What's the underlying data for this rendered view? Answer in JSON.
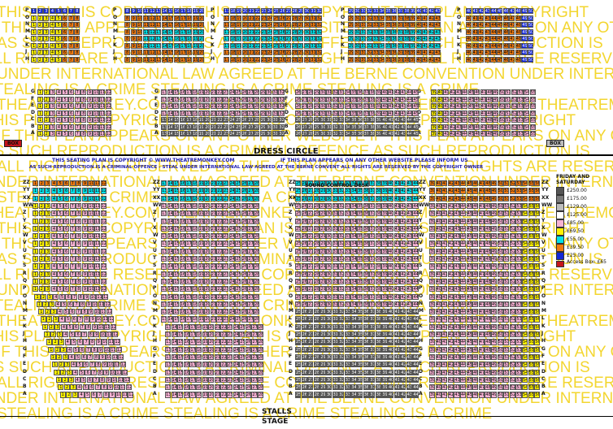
{
  "watermark_lines": [
    "THIS PLAN IS COPYRIGHT  THIS PLAN IS COPYRIGHT  THIS PLAN IS COPYRIGHT",
    "IF THIS PLAN APPEARS ON ANY OTHER WEBSITE  IF THIS PLAN APPEARS ON ANY OTHER",
    "AS SUCH REPRODUCTION IS A CRIMINAL OFFENCE  AS SUCH REPRODUCTION IS",
    "ALL RIGHTS ARE RESERVED BY THE COPYRIGHT OWNER  ALL RIGHTS ARE RESERVED",
    "UNDER INTERNATIONAL LAW AGREED AT THE BERNE CONVENTION  UNDER INTERNATIONAL",
    "STEALING IS A CRIME  STEALING IS A CRIME  STEALING IS A CRIME",
    "THEATREMONKEY.COM  THEATREMONKEY.COM  THEATREMONKEY.COM  THEATREMONKEY.COM",
    "THIS PLAN IS COPYRIGHT  THIS PLAN IS COPYRIGHT  THIS PLAN IS COPYRIGHT",
    "IF THIS PLAN APPEARS ON ANY OTHER WEBSITE  IF THIS PLAN APPEARS ON ANY OTHER",
    "AS SUCH REPRODUCTION IS A CRIMINAL OFFENCE  AS SUCH REPRODUCTION IS",
    "ALL RIGHTS ARE RESERVED BY THE COPYRIGHT OWNER  ALL RIGHTS ARE RESERVED",
    "UNDER INTERNATIONAL LAW AGREED AT THE BERNE CONVENTION  UNDER INTERNATIONAL",
    "STEALING IS A CRIME  STEALING IS A CRIME  STEALING IS A CRIME",
    "THEATREMONKEY.COM  THEATREMONKEY.COM  THEATREMONKEY.COM  THEATREMONKEY.COM",
    "THIS PLAN IS COPYRIGHT  THIS PLAN IS COPYRIGHT  THIS PLAN IS COPYRIGHT",
    "IF THIS PLAN APPEARS ON ANY OTHER WEBSITE  IF THIS PLAN APPEARS ON ANY OTHER",
    "AS SUCH REPRODUCTION IS A CRIMINAL OFFENCE  AS SUCH REPRODUCTION IS",
    "ALL RIGHTS ARE RESERVED BY THE COPYRIGHT OWNER  ALL RIGHTS ARE RESERVED",
    "UNDER INTERNATIONAL LAW AGREED AT THE BERNE CONVENTION  UNDER INTERNATIONAL",
    "STEALING IS A CRIME  STEALING IS A CRIME  STEALING IS A CRIME",
    "THEATREMONKEY.COM  THEATREMONKEY.COM  THEATREMONKEY.COM  THEATREMONKEY.COM",
    "THIS PLAN IS COPYRIGHT  THIS PLAN IS COPYRIGHT  THIS PLAN IS COPYRIGHT",
    "IF THIS PLAN APPEARS ON ANY OTHER WEBSITE  IF THIS PLAN APPEARS ON ANY OTHER",
    "AS SUCH REPRODUCTION IS A CRIMINAL OFFENCE  AS SUCH REPRODUCTION IS",
    "ALL RIGHTS ARE RESERVED BY THE COPYRIGHT OWNER  ALL RIGHTS ARE RESERVED",
    "UNDER INTERNATIONAL LAW AGREED AT THE BERNE CONVENTION  UNDER INTERNATIONAL",
    "STEALING IS A CRIME  STEALING IS A CRIME  STEALING IS A CRIME"
  ],
  "labels": {
    "dress_circle": "DRESS CIRCLE",
    "stalls": "STALLS",
    "stage": "STAGE",
    "sound_desk": "SOUND CONTROL DESK",
    "box_left": "BOX",
    "box_right": "BOX"
  },
  "notice": {
    "line1a": "THIS SEATING PLAN IS COPYRIGHT © WWW.THEATREMONKEY.COM",
    "line1b": "IF THIS PLAN APPEARS ON ANY OTHER WEBSITE PLEASE INFORM US",
    "line2": "AS SUCH REPRODUCTION IS A CRIMINAL OFFENCE - STEAL  UNDER INTERNATIONAL LAW AGREED AT THE BERNE CONVENT  ALL RIGHTS ARE RESERVED BY THE COPYRIGHT OWNER"
  },
  "legend": {
    "title": "FRIDAY AND SATURDAY",
    "items": [
      {
        "color": "#555555",
        "price": "£250.00"
      },
      {
        "color": "#7a7a7a",
        "price": "£175.00"
      },
      {
        "color": "#bdbdbd",
        "price": "£129.00"
      },
      {
        "color": "#ffffff",
        "price": "£125.00"
      },
      {
        "color": "#f7b2d4",
        "price": "£85.00"
      },
      {
        "color": "#fff200",
        "price": "£69.50"
      },
      {
        "color": "#00e0e8",
        "price": "£55.00"
      },
      {
        "color": "#f07a10",
        "price": "£39.50"
      },
      {
        "color": "#1428d8",
        "price": "£25.00"
      }
    ],
    "box_note": "Access Box: £65",
    "box_color": "#c4161c"
  },
  "seating": {
    "upper_rows": [
      "P",
      "O",
      "N",
      "M",
      "L",
      "K",
      "J",
      "H"
    ],
    "upper_left_seats": 7,
    "upper_colors": [
      "#1428d8",
      "#f07a10",
      "#f07a10",
      "#00e0e8",
      "#00e0e8",
      "#00e0e8",
      "#f07a10",
      "#f07a10"
    ],
    "circle_rows": [
      "G",
      "F",
      "E",
      "D",
      "C",
      "B",
      "A"
    ],
    "stalls_rows": [
      "ZZ",
      "YY",
      "XX",
      "WW",
      "Z",
      "Y",
      "X",
      "W",
      "V",
      "U",
      "T",
      "S",
      "R",
      "Q",
      "P",
      "O",
      "N",
      "M",
      "L",
      "K",
      "J",
      "H",
      "G",
      "F",
      "E",
      "D",
      "C",
      "B",
      "A"
    ]
  }
}
